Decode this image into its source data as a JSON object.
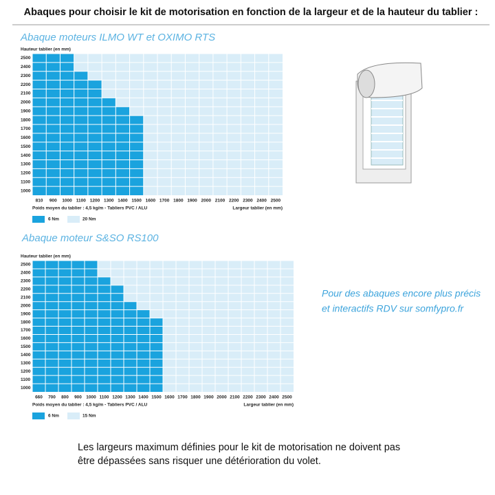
{
  "header": {
    "title": "Abaques pour choisir le kit de motorisation en fonction de la largeur et de la hauteur du tablier :"
  },
  "abaques": [
    {
      "title": "Abaque moteurs ILMO WT et OXIMO RTS",
      "y_label": "Hauteur tablier (en mm)",
      "x_label": "Largeur tablier (en mm)",
      "note": "Poids moyen du tablier : 4,5 kg/m  -  Tabliers PVC / ALU",
      "heights": [
        2500,
        2400,
        2300,
        2200,
        2100,
        2000,
        1900,
        1800,
        1700,
        1600,
        1500,
        1400,
        1300,
        1200,
        1100,
        1000
      ],
      "widths": [
        810,
        900,
        1000,
        1100,
        1200,
        1300,
        1400,
        1500,
        1600,
        1700,
        1800,
        1900,
        2000,
        2100,
        2200,
        2300,
        2400,
        2500
      ],
      "max_width_6nm": [
        1000,
        1000,
        1100,
        1200,
        1200,
        1300,
        1400,
        1500,
        1500,
        1500,
        1500,
        1500,
        1500,
        1500,
        1500,
        1500
      ],
      "legend": [
        "6 Nm",
        "20 Nm"
      ]
    },
    {
      "title": "Abaque moteur S&SO RS100",
      "y_label": "Hauteur tablier (en mm)",
      "x_label": "Largeur tablier (en mm)",
      "note": "Poids moyen du tablier : 4,5 kg/m  -  Tabliers PVC / ALU",
      "heights": [
        2500,
        2400,
        2300,
        2200,
        2100,
        2000,
        1900,
        1800,
        1700,
        1600,
        1500,
        1400,
        1300,
        1200,
        1100,
        1000
      ],
      "widths": [
        660,
        700,
        800,
        900,
        1000,
        1100,
        1200,
        1300,
        1400,
        1500,
        1600,
        1700,
        1800,
        1900,
        2000,
        2100,
        2200,
        2300,
        2400,
        2500
      ],
      "max_width_6nm": [
        1000,
        1000,
        1100,
        1200,
        1200,
        1300,
        1400,
        1500,
        1500,
        1500,
        1500,
        1500,
        1500,
        1500,
        1500,
        1500
      ],
      "legend": [
        "6 Nm",
        "15 Nm"
      ]
    }
  ],
  "side_note": [
    "Pour des abaques encore plus précis",
    "et interactifs RDV sur somfypro.fr"
  ],
  "footer": [
    "Les largeurs maximum définies pour le kit de motorisation ne doivent pas",
    "être dépassées sans risquer une détérioration du volet."
  ]
}
